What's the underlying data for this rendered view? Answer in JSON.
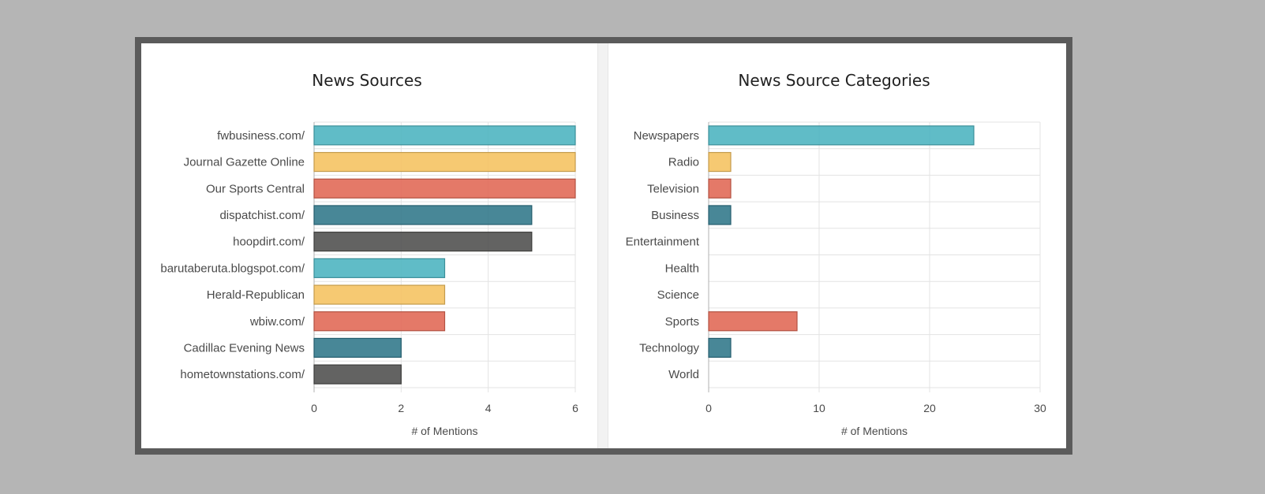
{
  "colors": [
    "#4ab3bf",
    "#f5c25f",
    "#e06753",
    "#2f7689",
    "#4d4d4c"
  ],
  "chart_data": [
    {
      "type": "bar",
      "orientation": "horizontal",
      "title": "News Sources",
      "xlabel": "# of Mentions",
      "ylabel": "",
      "categories": [
        "fwbusiness.com/",
        "Journal Gazette Online",
        "Our Sports Central",
        "dispatchist.com/",
        "hoopdirt.com/",
        "barutaberuta.blogspot.com/",
        "Herald-Republican",
        "wbiw.com/",
        "Cadillac Evening News",
        "hometownstations.com/"
      ],
      "values": [
        6,
        6,
        6,
        5,
        5,
        3,
        3,
        3,
        2,
        2
      ],
      "xlim": [
        0,
        6
      ],
      "xticks": [
        0,
        2,
        4,
        6
      ],
      "grid": true,
      "legend": "none"
    },
    {
      "type": "bar",
      "orientation": "horizontal",
      "title": "News Source Categories",
      "xlabel": "# of Mentions",
      "ylabel": "",
      "categories": [
        "Newspapers",
        "Radio",
        "Television",
        "Business",
        "Entertainment",
        "Health",
        "Science",
        "Sports",
        "Technology",
        "World"
      ],
      "values": [
        24,
        2,
        2,
        2,
        0,
        0,
        0,
        8,
        2,
        0
      ],
      "xlim": [
        0,
        30
      ],
      "xticks": [
        0,
        10,
        20,
        30
      ],
      "grid": true,
      "legend": "none"
    }
  ]
}
